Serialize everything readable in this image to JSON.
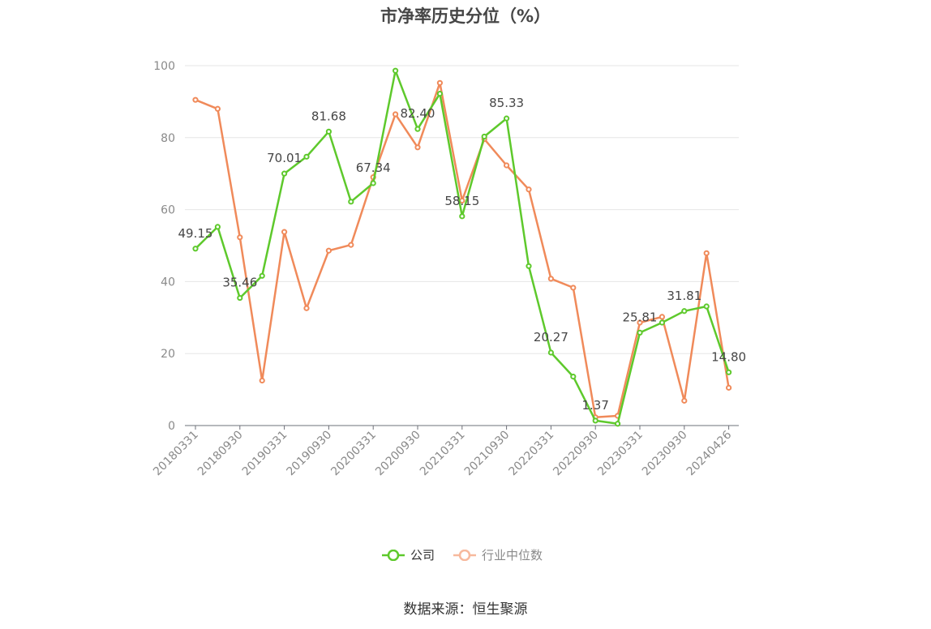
{
  "chart_data": {
    "type": "line",
    "title": "市净率历史分位（%）",
    "ylim": [
      0,
      100
    ],
    "yticks": [
      "0",
      "20",
      "40",
      "60",
      "80",
      "100"
    ],
    "x_tick_labels": [
      "20180331",
      "20180930",
      "20190331",
      "20190930",
      "20200331",
      "20200930",
      "20210331",
      "20210930",
      "20220331",
      "20220930",
      "20230331",
      "20230930",
      "20240426"
    ],
    "grid": true,
    "legend_position": "bottom",
    "series": [
      {
        "name": "公司",
        "color": "#5ec92c",
        "values": [
          49.15,
          55.2,
          35.46,
          41.6,
          70.01,
          74.7,
          81.68,
          62.2,
          67.34,
          98.6,
          82.4,
          92.2,
          58.15,
          80.3,
          85.33,
          44.3,
          20.27,
          13.6,
          1.37,
          0.5,
          25.81,
          28.6,
          31.81,
          33.1,
          14.8
        ],
        "labels": [
          "49.15",
          "",
          "35.46",
          "",
          "70.01",
          "",
          "81.68",
          "",
          "67.34",
          "",
          "82.40",
          "",
          "58.15",
          "",
          "85.33",
          "",
          "20.27",
          "",
          "1.37",
          "",
          "25.81",
          "",
          "31.81",
          "",
          "14.80"
        ]
      },
      {
        "name": "行业中位数",
        "color": "#f08a5a",
        "values": [
          90.5,
          88.0,
          52.3,
          12.5,
          53.8,
          32.6,
          48.6,
          50.2,
          69.0,
          86.5,
          77.3,
          95.2,
          62.5,
          79.6,
          72.3,
          65.6,
          40.8,
          38.3,
          2.3,
          2.7,
          28.6,
          30.2,
          6.9,
          47.9,
          10.5
        ]
      }
    ]
  },
  "source": "数据来源：恒生聚源"
}
